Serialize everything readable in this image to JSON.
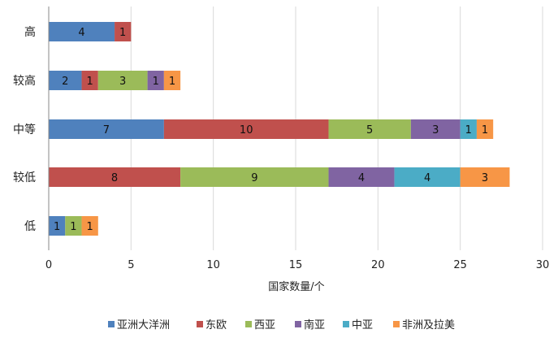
{
  "chart_data": {
    "type": "bar",
    "orientation": "horizontal",
    "stacked": true,
    "categories": [
      "高",
      "较高",
      "中等",
      "较低",
      "低"
    ],
    "series": [
      {
        "name": "亚洲大洋洲",
        "color": "#4F81BD",
        "values": [
          4,
          2,
          7,
          0,
          1
        ]
      },
      {
        "name": "东欧",
        "color": "#C0504D",
        "values": [
          1,
          1,
          10,
          8,
          0
        ]
      },
      {
        "name": "西亚",
        "color": "#9BBB59",
        "values": [
          0,
          3,
          5,
          9,
          1
        ]
      },
      {
        "name": "南亚",
        "color": "#8064A2",
        "values": [
          0,
          1,
          3,
          4,
          0
        ]
      },
      {
        "name": "中亚",
        "color": "#4BACC6",
        "values": [
          0,
          0,
          1,
          4,
          0
        ]
      },
      {
        "name": "非洲及拉美",
        "color": "#F79646",
        "values": [
          0,
          1,
          1,
          3,
          1
        ]
      }
    ],
    "xlabel": "国家数量/个",
    "ylabel": "",
    "xlim": [
      0,
      30
    ],
    "xticks": [
      0,
      5,
      10,
      15,
      20,
      25,
      30
    ],
    "grid": "vertical",
    "legend": "bottom"
  }
}
